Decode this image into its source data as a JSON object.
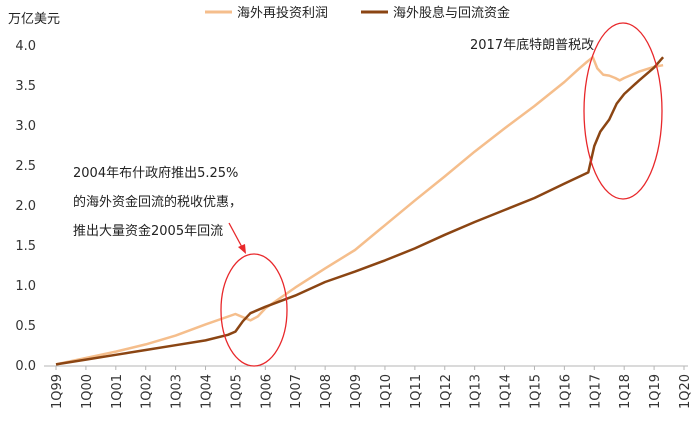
{
  "chart_data": {
    "type": "line",
    "ylabel": "万亿美元",
    "ylim": [
      0,
      4
    ],
    "yticks": [
      "0.0",
      "0.5",
      "1.0",
      "1.5",
      "2.0",
      "2.5",
      "3.0",
      "3.5",
      "4.0"
    ],
    "categories": [
      "1Q99",
      "1Q00",
      "1Q01",
      "1Q02",
      "1Q03",
      "1Q04",
      "1Q05",
      "1Q06",
      "1Q07",
      "1Q08",
      "1Q09",
      "1Q10",
      "1Q11",
      "1Q12",
      "1Q13",
      "1Q14",
      "1Q15",
      "1Q16",
      "1Q17",
      "1Q18",
      "1Q19",
      "1Q20"
    ],
    "series": [
      {
        "name": "海外再投资利润",
        "color": "#f5be8c",
        "points": [
          [
            0,
            0.02
          ],
          [
            1,
            0.1
          ],
          [
            2,
            0.18
          ],
          [
            3,
            0.27
          ],
          [
            4,
            0.38
          ],
          [
            5,
            0.52
          ],
          [
            6.0,
            0.65
          ],
          [
            6.25,
            0.61
          ],
          [
            6.5,
            0.57
          ],
          [
            6.75,
            0.62
          ],
          [
            7,
            0.72
          ],
          [
            8,
            0.98
          ],
          [
            9,
            1.22
          ],
          [
            10,
            1.45
          ],
          [
            11,
            1.76
          ],
          [
            12,
            2.07
          ],
          [
            13,
            2.37
          ],
          [
            14,
            2.68
          ],
          [
            15,
            2.97
          ],
          [
            16,
            3.25
          ],
          [
            17,
            3.55
          ],
          [
            17.5,
            3.72
          ],
          [
            17.75,
            3.8
          ],
          [
            17.95,
            3.86
          ],
          [
            18.1,
            3.72
          ],
          [
            18.3,
            3.64
          ],
          [
            18.5,
            3.63
          ],
          [
            18.7,
            3.6
          ],
          [
            18.85,
            3.57
          ],
          [
            19,
            3.6
          ],
          [
            19.5,
            3.68
          ],
          [
            20,
            3.74
          ],
          [
            20.3,
            3.76
          ]
        ]
      },
      {
        "name": "海外股息与回流资金",
        "color": "#8b4513",
        "points": [
          [
            0,
            0.02
          ],
          [
            1,
            0.08
          ],
          [
            2,
            0.14
          ],
          [
            3,
            0.2
          ],
          [
            4,
            0.26
          ],
          [
            5,
            0.32
          ],
          [
            5.75,
            0.39
          ],
          [
            6.0,
            0.43
          ],
          [
            6.25,
            0.56
          ],
          [
            6.5,
            0.66
          ],
          [
            7,
            0.74
          ],
          [
            8,
            0.88
          ],
          [
            9,
            1.05
          ],
          [
            10,
            1.18
          ],
          [
            11,
            1.32
          ],
          [
            12,
            1.47
          ],
          [
            13,
            1.64
          ],
          [
            14,
            1.8
          ],
          [
            15,
            1.95
          ],
          [
            16,
            2.1
          ],
          [
            17,
            2.28
          ],
          [
            17.8,
            2.42
          ],
          [
            18.0,
            2.75
          ],
          [
            18.2,
            2.93
          ],
          [
            18.5,
            3.08
          ],
          [
            18.75,
            3.28
          ],
          [
            19,
            3.4
          ],
          [
            19.5,
            3.57
          ],
          [
            20,
            3.73
          ],
          [
            20.3,
            3.86
          ]
        ]
      }
    ],
    "annotations": [
      {
        "text": "2004年布什政府推出5.25%",
        "type": "text"
      },
      {
        "text": "的海外资金回流的税收优惠，",
        "type": "text"
      },
      {
        "text": "推出大量资金2005年回流",
        "type": "text"
      },
      {
        "text": "2017年底特朗普税改",
        "type": "text"
      }
    ],
    "accent_color": "#e8282b"
  }
}
